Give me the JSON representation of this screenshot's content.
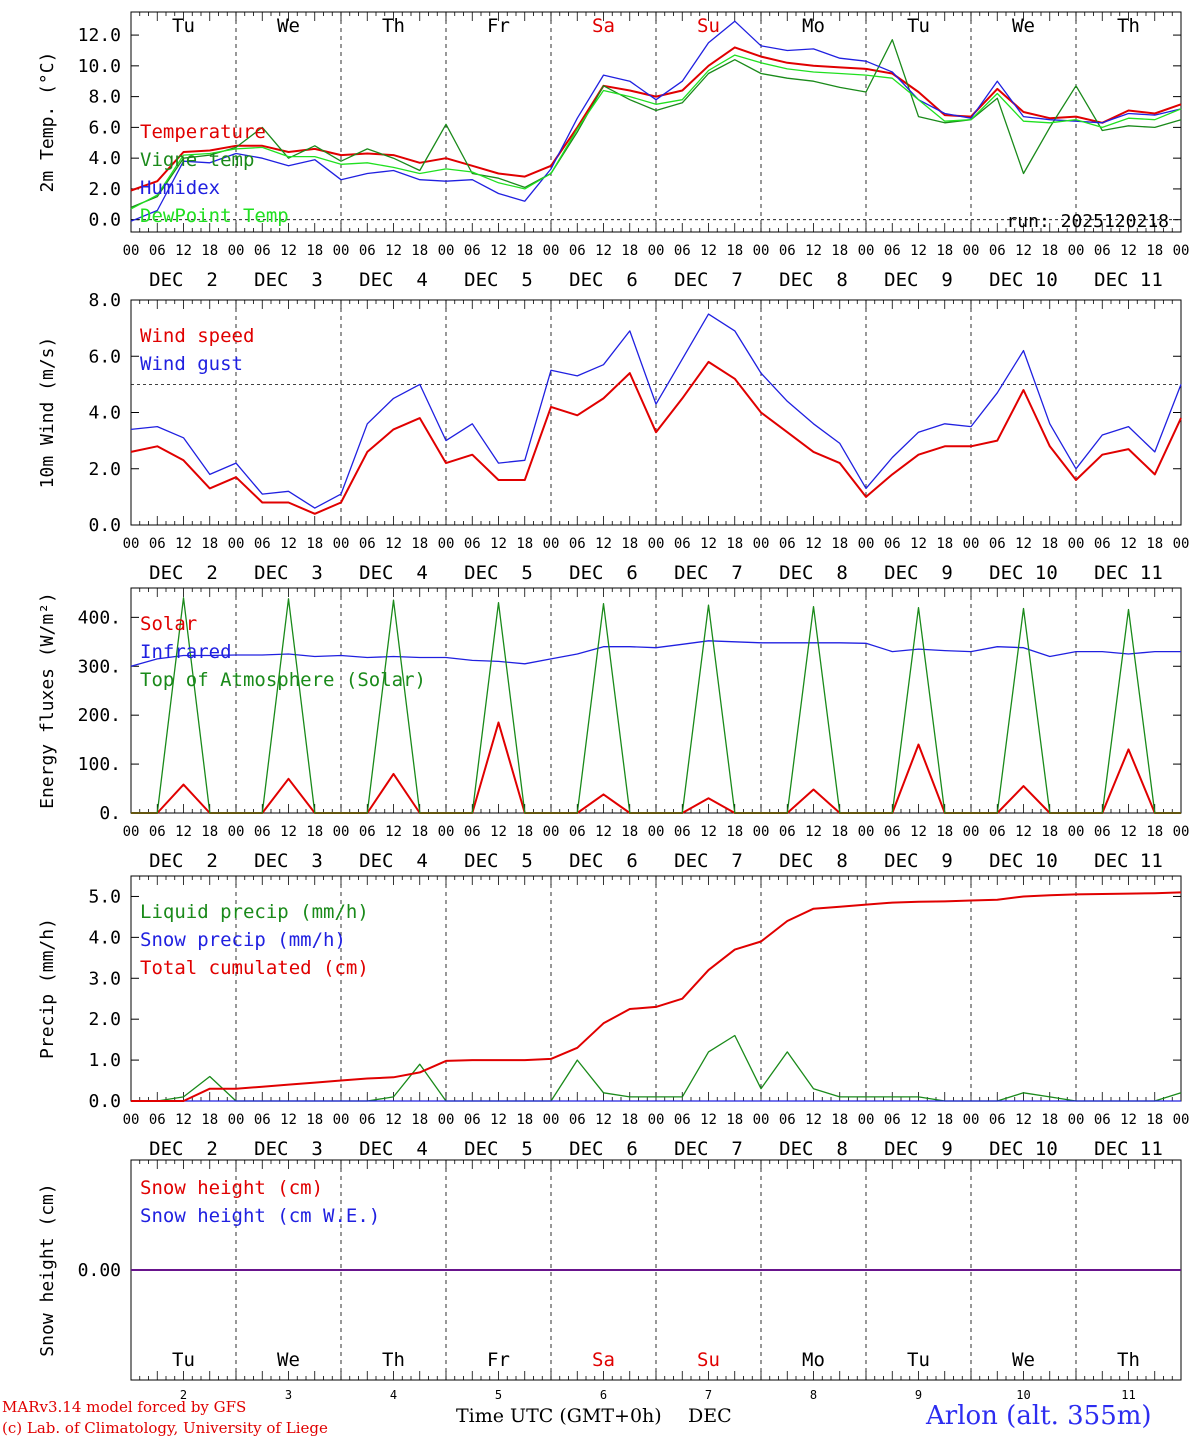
{
  "footer": {
    "model_line": "MARv3.14 model forced by GFS",
    "credit_line": "(c) Lab. of Climatology, University of Liege",
    "time_axis_label": "Time UTC (GMT+0h)",
    "month_label": "DEC",
    "station_label": "Arlon (alt. 355m)"
  },
  "colors": {
    "red": "#e00000",
    "green": "#1a8a1a",
    "blue": "#2020e0",
    "lightgreen": "#20e020",
    "weekend": "#e00000"
  },
  "axis": {
    "hour_labels": [
      "00",
      "06",
      "12",
      "18"
    ],
    "end_label": "00",
    "day_of_week": [
      "Tu",
      "We",
      "Th",
      "Fr",
      "Sa",
      "Su",
      "Mo",
      "Tu",
      "We",
      "Th"
    ],
    "weekend_flags": [
      false,
      false,
      false,
      false,
      true,
      true,
      false,
      false,
      false,
      false
    ],
    "date_labels": [
      "DEC  2",
      "DEC  3",
      "DEC  4",
      "DEC  5",
      "DEC  6",
      "DEC  7",
      "DEC  8",
      "DEC  9",
      "DEC 10",
      "DEC 11"
    ],
    "day_numbers": [
      "2",
      "3",
      "4",
      "5",
      "6",
      "7",
      "8",
      "9",
      "10",
      "11"
    ]
  },
  "chart_data": [
    {
      "type": "line",
      "panel": "temperature",
      "ylabel": "2m Temp. (°C)",
      "ylim": [
        -0.8,
        13.5
      ],
      "ticks": [
        0,
        2,
        4,
        6,
        8,
        10,
        12
      ],
      "tick_labels": [
        "0.0",
        "2.0",
        "4.0",
        "6.0",
        "8.0",
        "10.0",
        "12.0"
      ],
      "reference_line": 0,
      "annotation": "run: 2025120218",
      "x_unit": "hours since DEC 2 00 UTC",
      "x": [
        0,
        6,
        12,
        18,
        24,
        30,
        36,
        42,
        48,
        54,
        60,
        66,
        72,
        78,
        84,
        90,
        96,
        102,
        108,
        114,
        120,
        126,
        132,
        138,
        144,
        150,
        156,
        162,
        168,
        174,
        180,
        186,
        192,
        198,
        204,
        210,
        216,
        222,
        228,
        234,
        240
      ],
      "series": [
        {
          "name": "Temperature",
          "color": "red",
          "values": [
            1.9,
            2.5,
            4.4,
            4.5,
            4.8,
            4.8,
            4.4,
            4.6,
            4.2,
            4.3,
            4.2,
            3.7,
            4.0,
            3.5,
            3.0,
            2.8,
            3.5,
            6.0,
            8.7,
            8.4,
            8.0,
            8.4,
            10.0,
            11.2,
            10.6,
            10.2,
            10.0,
            9.9,
            9.8,
            9.5,
            8.3,
            6.8,
            6.7,
            8.5,
            7.0,
            6.6,
            6.7,
            6.3,
            7.1,
            6.9,
            7.5
          ]
        },
        {
          "name": "Vigne temp",
          "color": "green",
          "values": [
            0.8,
            1.5,
            4.0,
            4.2,
            4.7,
            6.0,
            4.0,
            4.8,
            3.8,
            4.6,
            4.0,
            3.2,
            6.2,
            3.0,
            2.7,
            2.1,
            3.0,
            5.7,
            8.7,
            7.8,
            7.1,
            7.6,
            9.5,
            10.4,
            9.5,
            9.2,
            9.0,
            8.6,
            8.3,
            11.7,
            6.7,
            6.3,
            6.5,
            7.9,
            3.0,
            6.0,
            8.7,
            5.8,
            6.1,
            6.0,
            6.5
          ]
        },
        {
          "name": "Humidex",
          "color": "blue",
          "values": [
            -0.1,
            0.6,
            3.8,
            3.7,
            4.3,
            4.0,
            3.5,
            3.9,
            2.6,
            3.0,
            3.2,
            2.6,
            2.5,
            2.6,
            1.7,
            1.2,
            3.3,
            6.6,
            9.4,
            9.0,
            7.8,
            9.0,
            11.5,
            12.9,
            11.3,
            11.0,
            11.1,
            10.5,
            10.3,
            9.6,
            7.8,
            6.9,
            6.6,
            9.0,
            6.7,
            6.5,
            6.4,
            6.3,
            6.9,
            6.8,
            7.2
          ]
        },
        {
          "name": "DewPoint Temp",
          "color": "lightgreen",
          "values": [
            0.7,
            1.6,
            4.2,
            4.3,
            4.6,
            4.7,
            4.1,
            4.1,
            3.6,
            3.7,
            3.4,
            3.0,
            3.3,
            3.1,
            2.4,
            2.0,
            3.0,
            5.9,
            8.4,
            8.0,
            7.5,
            7.8,
            9.7,
            10.7,
            10.2,
            9.8,
            9.6,
            9.5,
            9.4,
            9.2,
            7.8,
            6.4,
            6.5,
            8.2,
            6.4,
            6.3,
            6.5,
            6.0,
            6.6,
            6.5,
            7.2
          ]
        }
      ]
    },
    {
      "type": "line",
      "panel": "wind",
      "ylabel": "10m Wind (m/s)",
      "ylim": [
        0,
        8
      ],
      "ticks": [
        0,
        2,
        4,
        6,
        8
      ],
      "tick_labels": [
        "0.0",
        "2.0",
        "4.0",
        "6.0",
        "8.0"
      ],
      "reference_line": 5,
      "x_unit": "hours since DEC 2 00 UTC",
      "x": [
        0,
        6,
        12,
        18,
        24,
        30,
        36,
        42,
        48,
        54,
        60,
        66,
        72,
        78,
        84,
        90,
        96,
        102,
        108,
        114,
        120,
        126,
        132,
        138,
        144,
        150,
        156,
        162,
        168,
        174,
        180,
        186,
        192,
        198,
        204,
        210,
        216,
        222,
        228,
        234,
        240
      ],
      "series": [
        {
          "name": "Wind speed",
          "color": "red",
          "values": [
            2.6,
            2.8,
            2.3,
            1.3,
            1.7,
            0.8,
            0.8,
            0.4,
            0.8,
            2.6,
            3.4,
            3.8,
            2.2,
            2.5,
            1.6,
            1.6,
            4.2,
            3.9,
            4.5,
            5.4,
            3.3,
            4.5,
            5.8,
            5.2,
            4.0,
            3.3,
            2.6,
            2.2,
            1.0,
            1.8,
            2.5,
            2.8,
            2.8,
            3.0,
            4.8,
            2.8,
            1.6,
            2.5,
            2.7,
            1.8,
            3.8
          ]
        },
        {
          "name": "Wind gust",
          "color": "blue",
          "values": [
            3.4,
            3.5,
            3.1,
            1.8,
            2.2,
            1.1,
            1.2,
            0.6,
            1.1,
            3.6,
            4.5,
            5.0,
            3.0,
            3.6,
            2.2,
            2.3,
            5.5,
            5.3,
            5.7,
            6.9,
            4.3,
            5.9,
            7.5,
            6.9,
            5.4,
            4.4,
            3.6,
            2.9,
            1.3,
            2.4,
            3.3,
            3.6,
            3.5,
            4.7,
            6.2,
            3.6,
            2.0,
            3.2,
            3.5,
            2.6,
            5.0
          ]
        }
      ]
    },
    {
      "type": "line",
      "panel": "energy",
      "ylabel": "Energy fluxes (W/m²)",
      "ylim": [
        0,
        460
      ],
      "ticks": [
        0,
        100,
        200,
        300,
        400
      ],
      "tick_labels": [
        "0.",
        "100.",
        "200.",
        "300.",
        "400."
      ],
      "x_unit": "hours since DEC 2 00 UTC",
      "x": [
        0,
        6,
        12,
        18,
        24,
        30,
        36,
        42,
        48,
        54,
        60,
        66,
        72,
        78,
        84,
        90,
        96,
        102,
        108,
        114,
        120,
        126,
        132,
        138,
        144,
        150,
        156,
        162,
        168,
        174,
        180,
        186,
        192,
        198,
        204,
        210,
        216,
        222,
        228,
        234,
        240
      ],
      "series": [
        {
          "name": "Solar",
          "color": "red",
          "values": [
            0,
            0,
            58,
            0,
            0,
            0,
            70,
            0,
            0,
            0,
            80,
            0,
            0,
            0,
            185,
            0,
            0,
            0,
            38,
            0,
            0,
            0,
            30,
            0,
            0,
            0,
            48,
            0,
            0,
            0,
            140,
            0,
            0,
            0,
            55,
            0,
            0,
            0,
            130,
            0,
            0
          ]
        },
        {
          "name": "Infrared",
          "color": "blue",
          "values": [
            300,
            315,
            322,
            322,
            323,
            323,
            325,
            320,
            322,
            318,
            320,
            318,
            318,
            312,
            310,
            305,
            315,
            325,
            340,
            340,
            338,
            345,
            352,
            350,
            348,
            348,
            348,
            348,
            347,
            330,
            335,
            332,
            330,
            340,
            338,
            320,
            330,
            330,
            325,
            330,
            330
          ]
        },
        {
          "name": "Top of Atmosphere (Solar)",
          "color": "green",
          "values": [
            0,
            0,
            440,
            0,
            0,
            0,
            438,
            0,
            0,
            0,
            435,
            0,
            0,
            0,
            430,
            0,
            0,
            0,
            428,
            0,
            0,
            0,
            425,
            0,
            0,
            0,
            422,
            0,
            0,
            0,
            420,
            0,
            0,
            0,
            418,
            0,
            0,
            0,
            416,
            0,
            0
          ]
        }
      ]
    },
    {
      "type": "line",
      "panel": "precip",
      "ylabel": "Precip (mm/h)",
      "ylim": [
        0,
        5.5
      ],
      "ticks": [
        0,
        1,
        2,
        3,
        4,
        5
      ],
      "tick_labels": [
        "0.0",
        "1.0",
        "2.0",
        "3.0",
        "4.0",
        "5.0"
      ],
      "x_unit": "hours since DEC 2 00 UTC",
      "x": [
        0,
        6,
        12,
        18,
        24,
        30,
        36,
        42,
        48,
        54,
        60,
        66,
        72,
        78,
        84,
        90,
        96,
        102,
        108,
        114,
        120,
        126,
        132,
        138,
        144,
        150,
        156,
        162,
        168,
        174,
        180,
        186,
        192,
        198,
        204,
        210,
        216,
        222,
        228,
        234,
        240
      ],
      "series": [
        {
          "name": "Liquid precip (mm/h)",
          "color": "green",
          "values": [
            0,
            0,
            0.1,
            0.6,
            0,
            0,
            0,
            0,
            0,
            0,
            0.1,
            0.9,
            0,
            0,
            0,
            0,
            0,
            1.0,
            0.2,
            0.1,
            0.1,
            0.1,
            1.2,
            1.6,
            0.3,
            1.2,
            0.3,
            0.1,
            0.1,
            0.1,
            0.1,
            0,
            0,
            0,
            0.2,
            0.1,
            0,
            0,
            0,
            0,
            0.2
          ]
        },
        {
          "name": "Snow precip (mm/h)",
          "color": "blue",
          "values": [
            0,
            0,
            0,
            0,
            0,
            0,
            0,
            0,
            0,
            0,
            0,
            0,
            0,
            0,
            0,
            0,
            0,
            0,
            0,
            0,
            0,
            0,
            0,
            0,
            0,
            0,
            0,
            0,
            0,
            0,
            0,
            0,
            0,
            0,
            0,
            0,
            0,
            0,
            0,
            0,
            0
          ]
        },
        {
          "name": "Total cumulated (cm)",
          "color": "red",
          "values": [
            0,
            0,
            0,
            0.3,
            0.3,
            0.35,
            0.4,
            0.45,
            0.5,
            0.55,
            0.58,
            0.7,
            0.98,
            1.0,
            1.0,
            1.0,
            1.03,
            1.3,
            1.9,
            2.25,
            2.3,
            2.5,
            3.2,
            3.7,
            3.9,
            4.4,
            4.7,
            4.75,
            4.8,
            4.85,
            4.87,
            4.88,
            4.9,
            4.92,
            5.0,
            5.03,
            5.05,
            5.06,
            5.07,
            5.08,
            5.1
          ]
        }
      ]
    },
    {
      "type": "line",
      "panel": "snow",
      "ylabel": "Snow height (cm)",
      "ylim": [
        -1,
        1
      ],
      "ticks": [
        0
      ],
      "tick_labels": [
        "0.00"
      ],
      "x_unit": "hours since DEC 2 00 UTC",
      "x": [
        0,
        240
      ],
      "series": [
        {
          "name": "Snow height (cm)",
          "color": "red",
          "values": [
            0,
            0
          ]
        },
        {
          "name": "Snow height (cm W.E.)",
          "color": "blue",
          "values": [
            0,
            0
          ]
        }
      ]
    }
  ]
}
